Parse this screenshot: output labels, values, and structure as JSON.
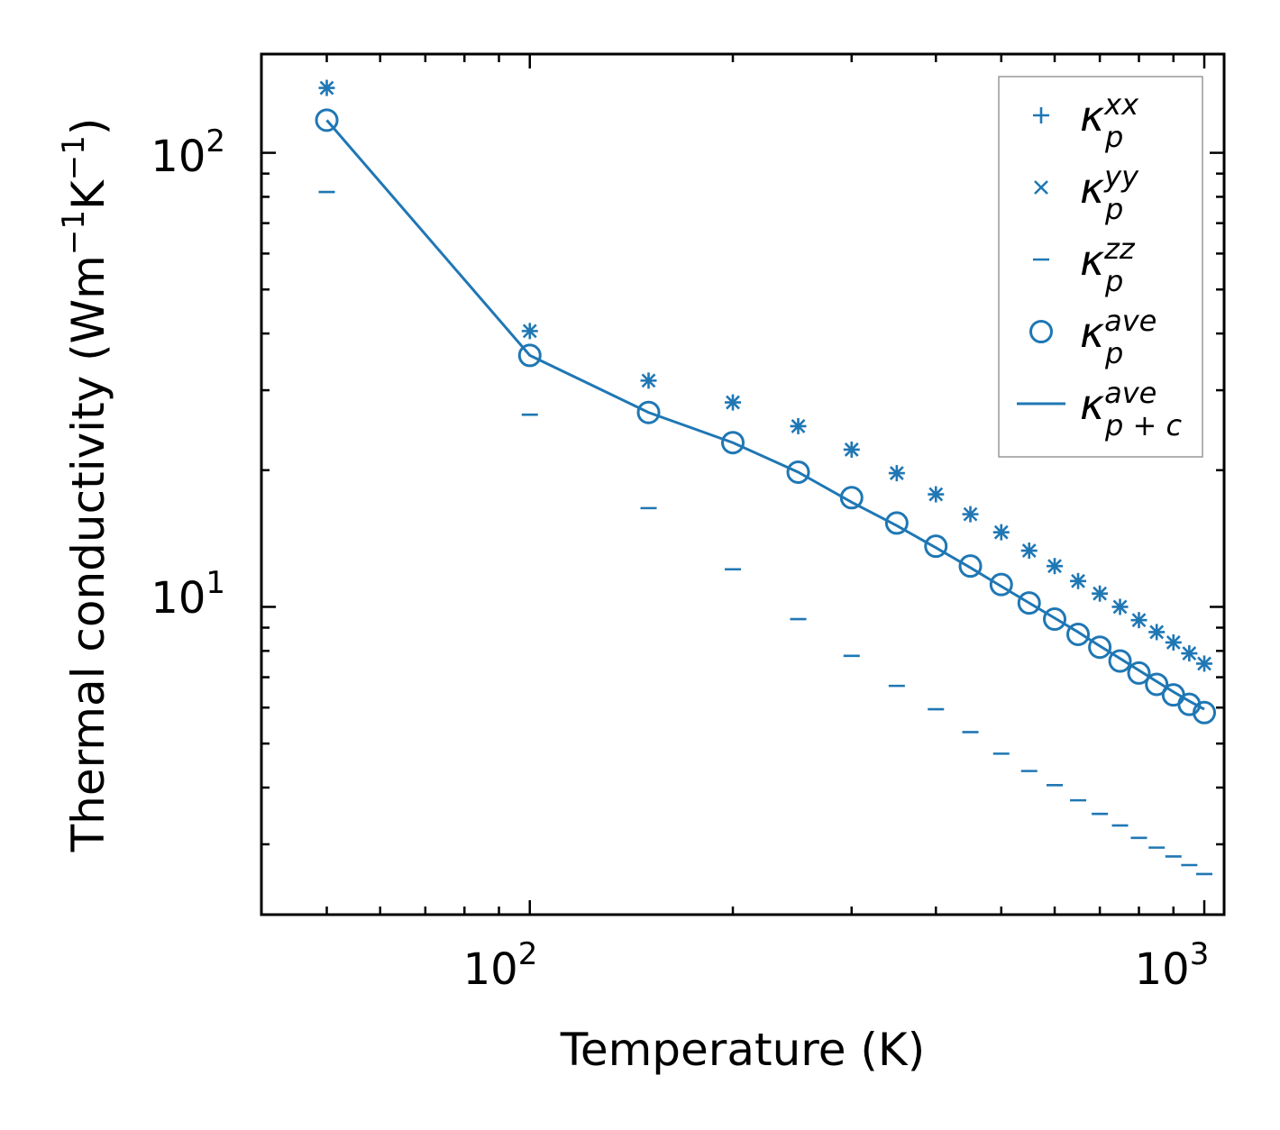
{
  "chart_data": {
    "type": "scatter",
    "xscale": "log",
    "yscale": "log",
    "xlabel": "Temperature (K)",
    "ylabel": {
      "base": "Thermal conductivity (Wm",
      "exp1": "−1",
      "mid": "K",
      "exp2": "−1",
      "end": ")"
    },
    "xlim": [
      40,
      1070
    ],
    "ylim": [
      2.1,
      165
    ],
    "x_ticks": [
      {
        "base": "10",
        "exp": "2",
        "value": 100
      },
      {
        "base": "10",
        "exp": "3",
        "value": 1000
      }
    ],
    "y_ticks": [
      {
        "base": "10",
        "exp": "1",
        "value": 10
      },
      {
        "base": "10",
        "exp": "2",
        "value": 100
      }
    ],
    "x": [
      50,
      100,
      150,
      200,
      250,
      300,
      350,
      400,
      450,
      500,
      550,
      600,
      650,
      700,
      750,
      800,
      850,
      900,
      950,
      1000
    ],
    "series": [
      {
        "name": "kappa_p^xx",
        "marker": "plus",
        "values": [
          139,
          40.5,
          31.5,
          28.2,
          25.0,
          22.2,
          19.7,
          17.7,
          16.0,
          14.6,
          13.3,
          12.3,
          11.4,
          10.7,
          10.0,
          9.35,
          8.8,
          8.35,
          7.9,
          7.5
        ]
      },
      {
        "name": "kappa_p^yy",
        "marker": "x",
        "values": [
          139,
          40.5,
          31.5,
          28.2,
          25.0,
          22.2,
          19.7,
          17.7,
          16.0,
          14.6,
          13.3,
          12.3,
          11.4,
          10.7,
          10.0,
          9.35,
          8.8,
          8.35,
          7.9,
          7.5
        ]
      },
      {
        "name": "kappa_p^zz",
        "marker": "hline",
        "values": [
          82,
          26.5,
          16.5,
          12.1,
          9.4,
          7.8,
          6.7,
          5.95,
          5.3,
          4.75,
          4.35,
          4.05,
          3.75,
          3.5,
          3.3,
          3.1,
          2.95,
          2.82,
          2.7,
          2.58
        ]
      },
      {
        "name": "kappa_p^ave",
        "marker": "circle",
        "values": [
          118,
          35.8,
          26.8,
          23.0,
          19.8,
          17.4,
          15.3,
          13.6,
          12.3,
          11.2,
          10.2,
          9.4,
          8.7,
          8.15,
          7.6,
          7.15,
          6.75,
          6.4,
          6.1,
          5.85
        ]
      },
      {
        "name": "kappa_p+c^ave",
        "marker": "line",
        "values": [
          118,
          35.8,
          26.8,
          23.0,
          19.8,
          17.0,
          15.1,
          13.5,
          12.2,
          11.1,
          10.2,
          9.45,
          8.8,
          8.2,
          7.7,
          7.25,
          6.85,
          6.5,
          6.2,
          5.95
        ]
      }
    ],
    "legend": {
      "position": "top-right",
      "items": [
        {
          "marker": "plus",
          "base": "κ",
          "sup": "xx",
          "sub": "p"
        },
        {
          "marker": "x",
          "base": "κ",
          "sup": "yy",
          "sub": "p"
        },
        {
          "marker": "hline",
          "base": "κ",
          "sup": "zz",
          "sub": "p"
        },
        {
          "marker": "circle",
          "base": "κ",
          "sup": "ave",
          "sub": "p"
        },
        {
          "marker": "line",
          "base": "κ",
          "sup": "ave",
          "sub": "p + c"
        }
      ]
    },
    "color": "#1f77b4"
  }
}
